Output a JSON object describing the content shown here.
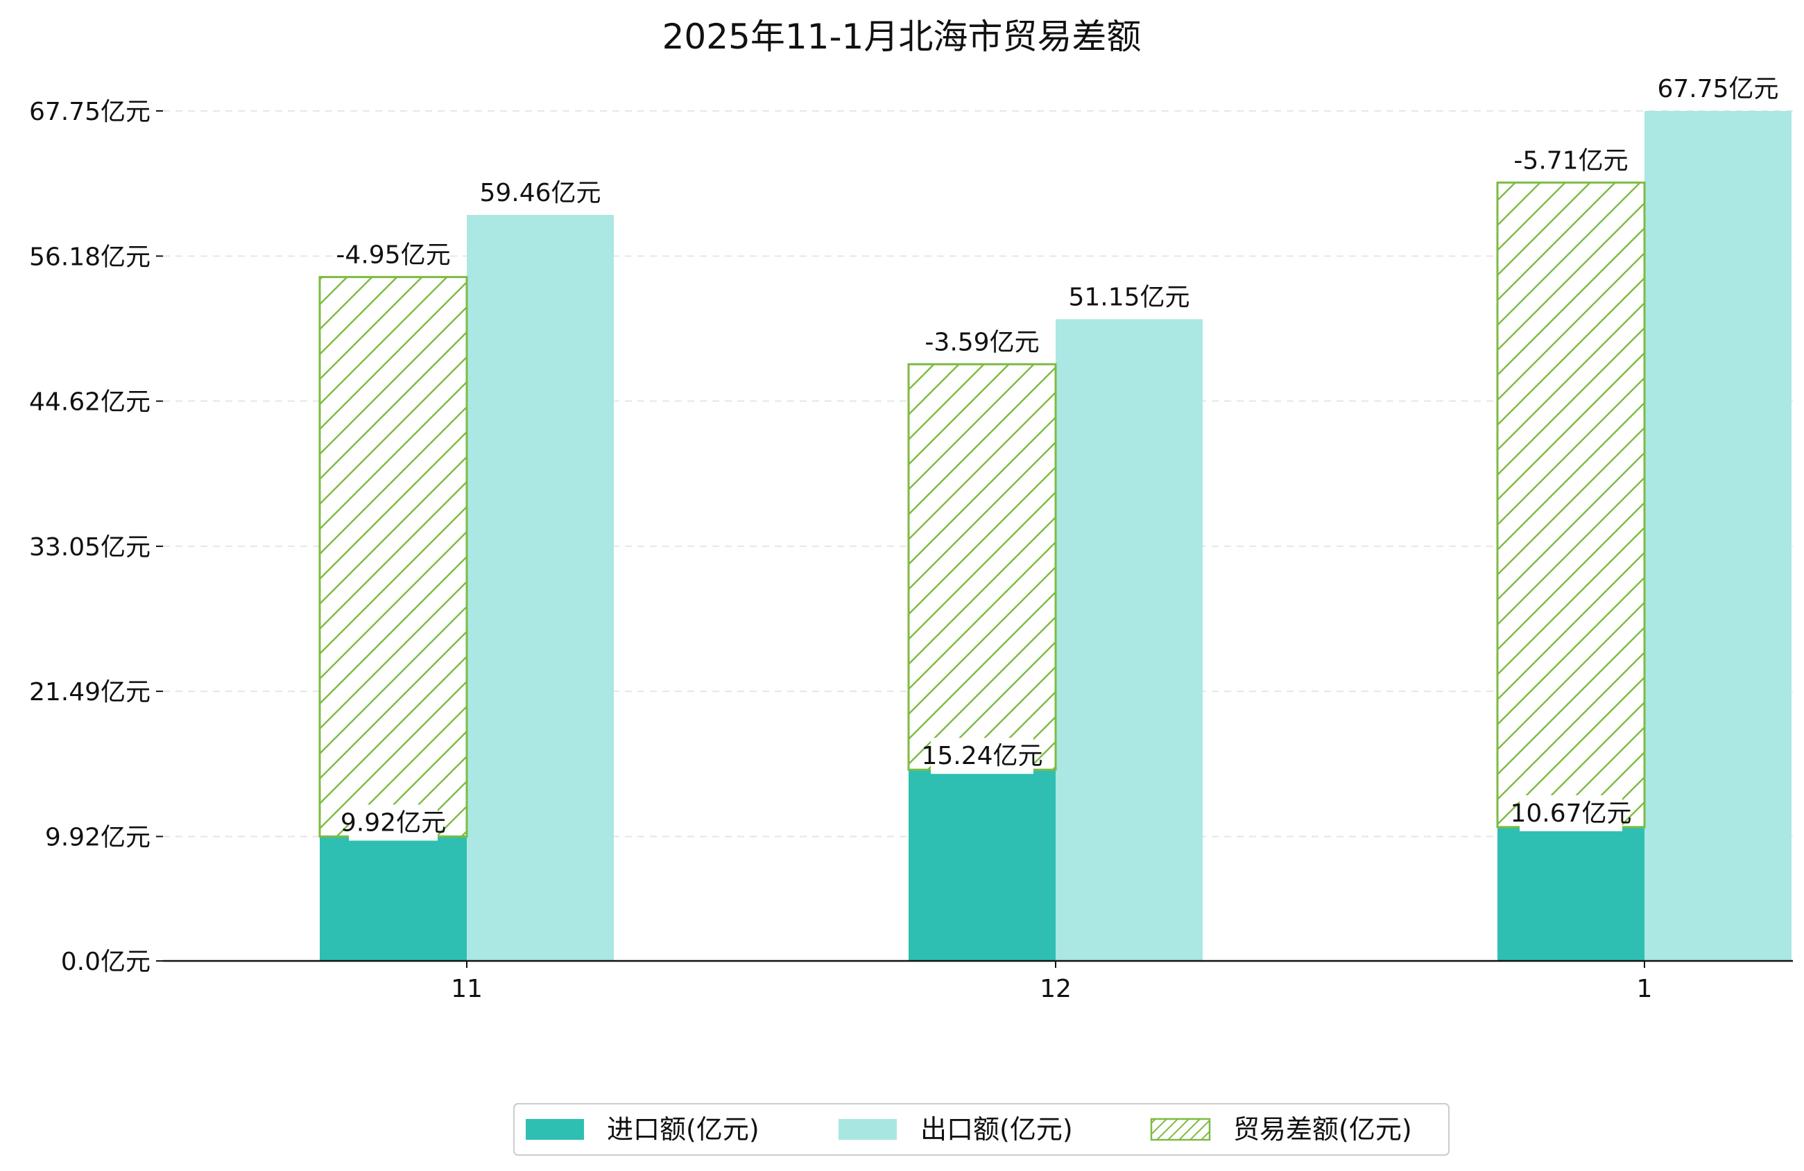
{
  "chart_data": {
    "type": "bar",
    "title": "2025年11-1月北海市贸易差额",
    "categories": [
      "11",
      "12",
      "1"
    ],
    "unit_suffix": "亿元",
    "yticks": [
      "0.0亿元",
      "9.92亿元",
      "21.49亿元",
      "33.05亿元",
      "44.62亿元",
      "56.18亿元",
      "67.75亿元"
    ],
    "ytick_values": [
      0,
      9.92,
      21.49,
      33.05,
      44.62,
      56.18,
      67.75
    ],
    "ylim": [
      0,
      67.75
    ],
    "grid": "horizontal dashed",
    "legend_position": "bottom",
    "series": [
      {
        "name": "进口额(亿元)",
        "values": [
          9.92,
          15.24,
          10.67
        ],
        "labels": [
          "9.92亿元",
          "15.24亿元",
          "10.67亿元"
        ],
        "color": "#2fbfb2"
      },
      {
        "name": "出口额(亿元)",
        "values": [
          59.46,
          51.15,
          67.75
        ],
        "labels": [
          "59.46亿元",
          "51.15亿元",
          "67.75亿元"
        ],
        "color": "#a8e6e2"
      },
      {
        "name": "贸易差额(亿元)",
        "values": [
          -4.95,
          -3.59,
          -5.71
        ],
        "labels": [
          "-4.95亿元",
          "-3.59亿元",
          "-5.71亿元"
        ],
        "color": "#7dbb42",
        "style": "hatched"
      }
    ]
  }
}
